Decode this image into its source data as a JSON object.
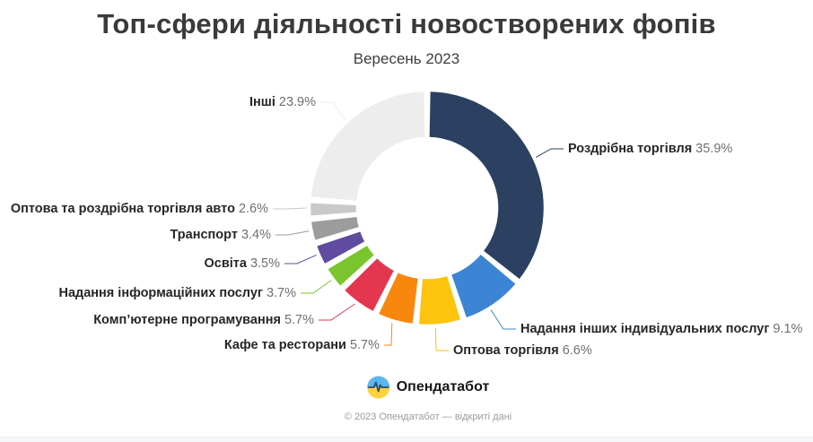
{
  "title": "Топ-сфери діяльності новостворених фопів",
  "subtitle": "Вересень 2023",
  "footer": {
    "brand": "Опендатабот",
    "copyright": "© 2023 Опендатабот — відкриті дані"
  },
  "colors": {
    "logo_blue": "#5bb6f0",
    "logo_yellow": "#ffd23e",
    "logo_pulse": "#2b4a6f"
  },
  "chart_data": {
    "type": "pie",
    "subtype": "donut",
    "title": "Топ-сфери діяльності новостворених фопів",
    "subtitle": "Вересень 2023",
    "unit": "%",
    "start_angle_deg": 0,
    "direction": "clockwise",
    "legend_position": "callout-labels",
    "slices": [
      {
        "label": "Роздрібна торгівля",
        "value": 35.9,
        "color": "#2c4162"
      },
      {
        "label": "Надання інших індивідуальних послуг",
        "value": 9.1,
        "color": "#3c85d5"
      },
      {
        "label": "Оптова торгівля",
        "value": 6.6,
        "color": "#fdc30d"
      },
      {
        "label": "Кафе та ресторани",
        "value": 5.7,
        "color": "#f8870e"
      },
      {
        "label": "Комп’ютерне програмування",
        "value": 5.7,
        "color": "#e4374f"
      },
      {
        "label": "Надання інформаційних послуг",
        "value": 3.7,
        "color": "#7ac52d"
      },
      {
        "label": "Освіта",
        "value": 3.5,
        "color": "#5f4b9f"
      },
      {
        "label": "Транспорт",
        "value": 3.4,
        "color": "#9c9c9c"
      },
      {
        "label": "Оптова та роздрібна торгівля авто",
        "value": 2.6,
        "color": "#c9c9c9"
      },
      {
        "label": "Інші",
        "value": 23.9,
        "color": "#ededee"
      }
    ]
  }
}
